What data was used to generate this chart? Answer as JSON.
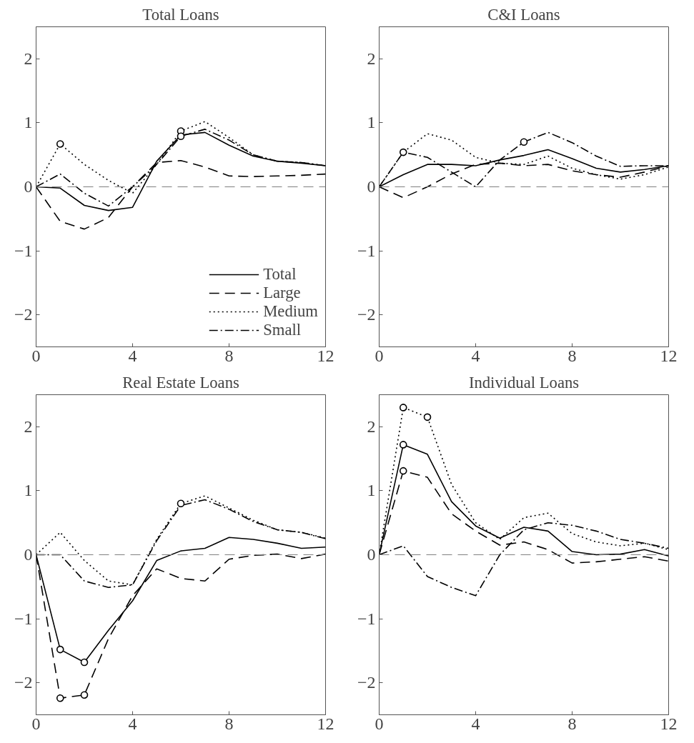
{
  "chart_data": [
    {
      "type": "line",
      "title": "Total Loans",
      "x": [
        0,
        1,
        2,
        3,
        4,
        5,
        6,
        7,
        8,
        9,
        10,
        11,
        12
      ],
      "xlim": [
        0,
        12
      ],
      "xticks": [
        0,
        4,
        8,
        12
      ],
      "ylim": [
        -2.5,
        2.5
      ],
      "yticks": [
        -2,
        -1,
        0,
        1,
        2
      ],
      "grid": false,
      "legend": "bottom right",
      "ref_lines": [
        {
          "axis": "y",
          "value": 0,
          "color": "#808080",
          "line_style": "dashed"
        }
      ],
      "series": [
        {
          "name": "Total",
          "color": "#000000",
          "line_style": "solid",
          "values": [
            0,
            -0.02,
            -0.29,
            -0.37,
            -0.32,
            0.4,
            0.81,
            0.85,
            0.65,
            0.48,
            0.4,
            0.37,
            0.33
          ]
        },
        {
          "name": "Large",
          "color": "#000000",
          "line_style": "dashed",
          "values": [
            0,
            -0.54,
            -0.66,
            -0.48,
            0,
            0.38,
            0.41,
            0.31,
            0.17,
            0.16,
            0.17,
            0.18,
            0.2
          ]
        },
        {
          "name": "Medium",
          "color": "#000000",
          "line_style": "dotted",
          "values": [
            0,
            0.67,
            0.35,
            0.1,
            -0.1,
            0.35,
            0.87,
            1.02,
            0.77,
            0.5,
            0.4,
            0.38,
            0.33
          ]
        },
        {
          "name": "Small",
          "color": "#000000",
          "line_style": "dashdot",
          "values": [
            0,
            0.2,
            -0.1,
            -0.3,
            0,
            0.35,
            0.79,
            0.9,
            0.73,
            0.5,
            0.4,
            0.38,
            0.33
          ]
        },
        {
          "type": "scatter",
          "marker": "circle",
          "color": "#000000",
          "x": [
            1,
            6,
            6
          ],
          "values": [
            0.67,
            0.87,
            0.79
          ]
        }
      ]
    },
    {
      "type": "line",
      "title": "C&I Loans",
      "x": [
        0,
        1,
        2,
        3,
        4,
        5,
        6,
        7,
        8,
        9,
        10,
        11,
        12
      ],
      "xlim": [
        0,
        12
      ],
      "xticks": [
        0,
        4,
        8,
        12
      ],
      "ylim": [
        -2.5,
        2.5
      ],
      "yticks": [
        -2,
        -1,
        0,
        1,
        2
      ],
      "grid": false,
      "ref_lines": [
        {
          "axis": "y",
          "value": 0,
          "color": "#808080",
          "line_style": "dashed"
        }
      ],
      "series": [
        {
          "color": "#000000",
          "line_style": "solid",
          "values": [
            0,
            0.19,
            0.35,
            0.35,
            0.33,
            0.42,
            0.49,
            0.58,
            0.44,
            0.29,
            0.23,
            0.27,
            0.33
          ]
        },
        {
          "color": "#000000",
          "line_style": "dashed",
          "values": [
            0,
            -0.17,
            0,
            0.2,
            0.35,
            0.37,
            0.33,
            0.35,
            0.25,
            0.19,
            0.15,
            0.23,
            0.33
          ]
        },
        {
          "color": "#000000",
          "line_style": "dotted",
          "values": [
            0,
            0.54,
            0.83,
            0.73,
            0.46,
            0.37,
            0.35,
            0.48,
            0.29,
            0.19,
            0.12,
            0.19,
            0.31
          ]
        },
        {
          "color": "#000000",
          "line_style": "dashdot",
          "values": [
            0,
            0.54,
            0.46,
            0.23,
            0,
            0.42,
            0.7,
            0.85,
            0.69,
            0.48,
            0.32,
            0.33,
            0.33
          ]
        },
        {
          "type": "scatter",
          "marker": "circle",
          "color": "#000000",
          "x": [
            1,
            6
          ],
          "values": [
            0.54,
            0.7
          ]
        }
      ]
    },
    {
      "type": "line",
      "title": "Real Estate Loans",
      "x": [
        0,
        1,
        2,
        3,
        4,
        5,
        6,
        7,
        8,
        9,
        10,
        11,
        12
      ],
      "xlim": [
        0,
        12
      ],
      "xticks": [
        0,
        4,
        8,
        12
      ],
      "ylim": [
        -2.5,
        2.5
      ],
      "yticks": [
        -2,
        -1,
        0,
        1,
        2
      ],
      "grid": false,
      "ref_lines": [
        {
          "axis": "y",
          "value": 0,
          "color": "#808080",
          "line_style": "dashed"
        }
      ],
      "series": [
        {
          "color": "#000000",
          "line_style": "solid",
          "values": [
            0,
            -1.48,
            -1.68,
            -1.18,
            -0.72,
            -0.09,
            0.06,
            0.1,
            0.27,
            0.24,
            0.18,
            0.1,
            0.12
          ]
        },
        {
          "color": "#000000",
          "line_style": "dashed",
          "values": [
            0,
            -2.24,
            -2.19,
            -1.31,
            -0.64,
            -0.22,
            -0.37,
            -0.41,
            -0.07,
            -0.01,
            0.01,
            -0.06,
            0.01
          ]
        },
        {
          "color": "#000000",
          "line_style": "dotted",
          "values": [
            0,
            0.35,
            -0.09,
            -0.41,
            -0.47,
            0.24,
            0.8,
            0.92,
            0.73,
            0.54,
            0.39,
            0.35,
            0.26
          ]
        },
        {
          "color": "#000000",
          "line_style": "dashdot",
          "values": [
            0,
            0,
            -0.41,
            -0.51,
            -0.47,
            0.22,
            0.77,
            0.86,
            0.71,
            0.52,
            0.39,
            0.35,
            0.25
          ]
        },
        {
          "type": "scatter",
          "marker": "circle",
          "color": "#000000",
          "x": [
            1,
            2,
            1,
            2,
            6
          ],
          "values": [
            -1.48,
            -1.68,
            -2.24,
            -2.19,
            0.8
          ]
        }
      ]
    },
    {
      "type": "line",
      "title": "Individual Loans",
      "x": [
        0,
        1,
        2,
        3,
        4,
        5,
        6,
        7,
        8,
        9,
        10,
        11,
        12
      ],
      "xlim": [
        0,
        12
      ],
      "xticks": [
        0,
        4,
        8,
        12
      ],
      "ylim": [
        -2.5,
        2.5
      ],
      "yticks": [
        -2,
        -1,
        0,
        1,
        2
      ],
      "grid": false,
      "ref_lines": [
        {
          "axis": "y",
          "value": 0,
          "color": "#808080",
          "line_style": "dashed"
        }
      ],
      "series": [
        {
          "color": "#000000",
          "line_style": "solid",
          "values": [
            0,
            1.72,
            1.57,
            0.83,
            0.45,
            0.26,
            0.43,
            0.37,
            0.05,
            0,
            0.01,
            0.08,
            -0.02
          ]
        },
        {
          "color": "#000000",
          "line_style": "dashed",
          "values": [
            0,
            1.31,
            1.21,
            0.64,
            0.37,
            0.15,
            0.2,
            0.08,
            -0.13,
            -0.11,
            -0.07,
            -0.03,
            -0.1
          ]
        },
        {
          "color": "#000000",
          "line_style": "dotted",
          "values": [
            0,
            2.3,
            2.15,
            1.1,
            0.5,
            0.24,
            0.58,
            0.65,
            0.33,
            0.2,
            0.14,
            0.18,
            0.08
          ]
        },
        {
          "color": "#000000",
          "line_style": "dashdot",
          "values": [
            0,
            0.14,
            -0.34,
            -0.51,
            -0.64,
            0,
            0.39,
            0.5,
            0.46,
            0.37,
            0.24,
            0.18,
            0.1
          ]
        },
        {
          "type": "scatter",
          "marker": "circle",
          "color": "#000000",
          "x": [
            1,
            2,
            1,
            1
          ],
          "values": [
            2.3,
            2.15,
            1.72,
            1.31
          ]
        }
      ]
    }
  ]
}
